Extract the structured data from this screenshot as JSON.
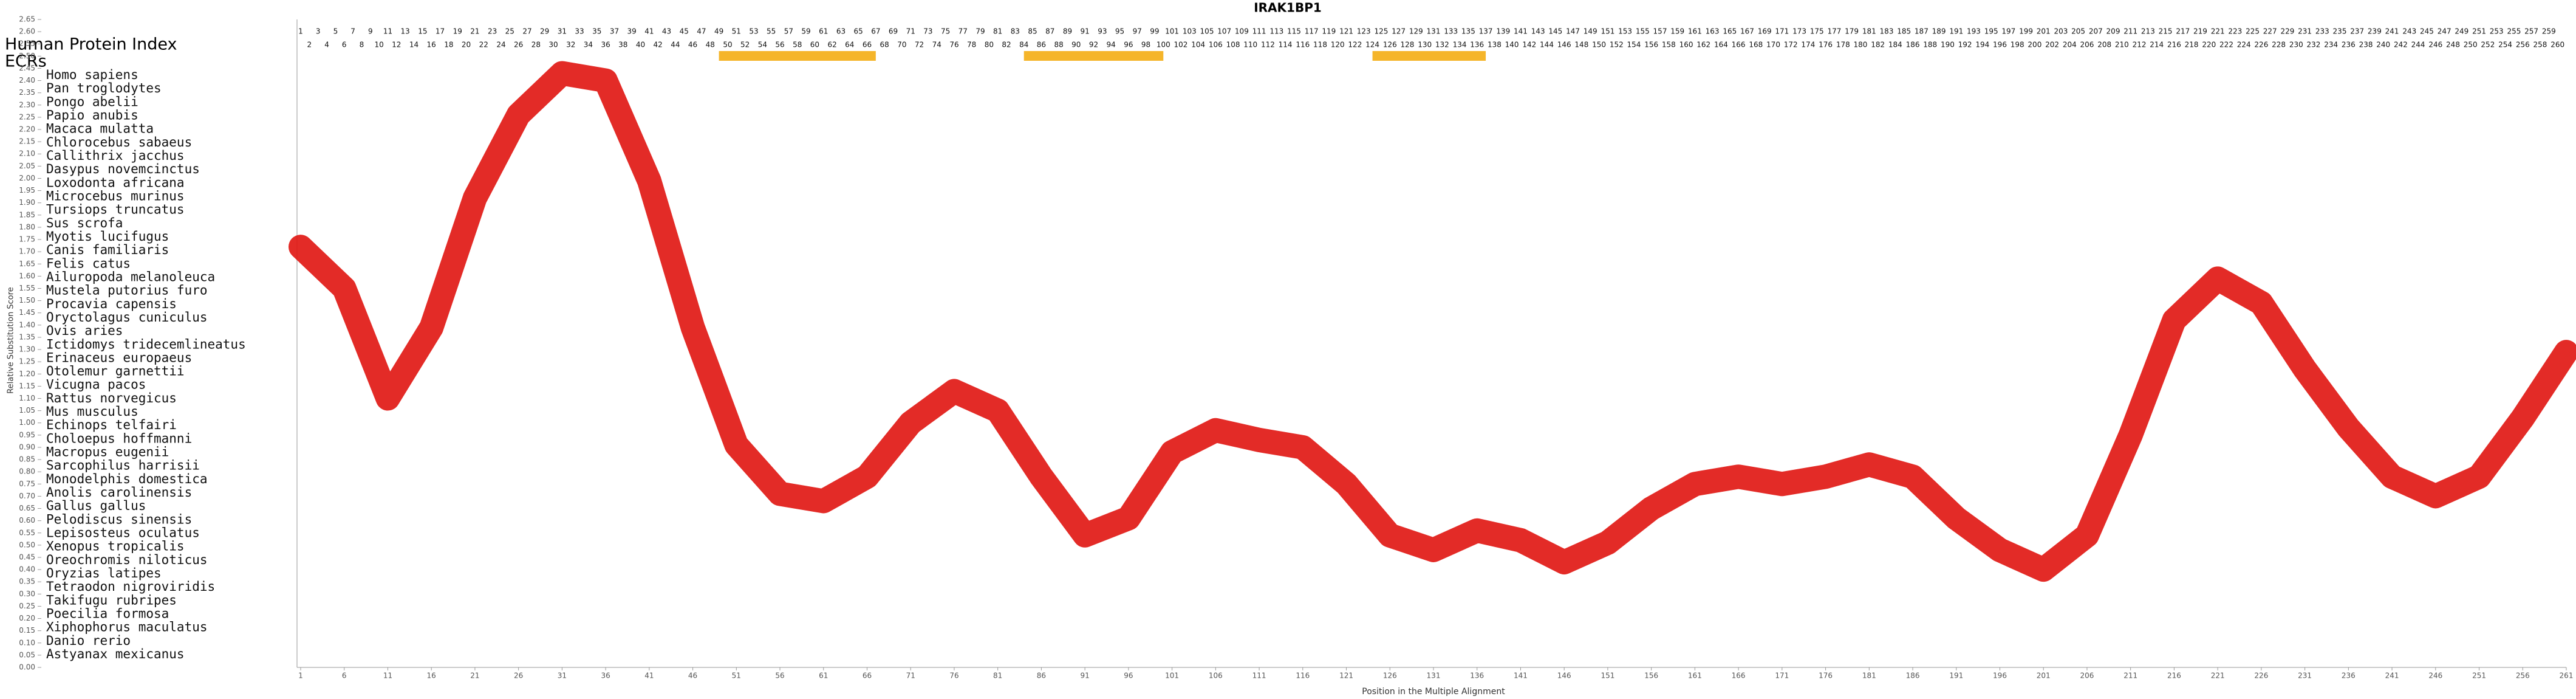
{
  "chart_data": {
    "type": "line",
    "title": "IRAK1BP1",
    "index_label": "Human Protein Index",
    "ecr_label": "ECRs",
    "xlabel": "Position in the Multiple Alignment",
    "ylabel": "Relative Substitution Score",
    "positions_odd": [
      1,
      3,
      5,
      7,
      9,
      11,
      13,
      15,
      17,
      19,
      21,
      23,
      25,
      27,
      29,
      31,
      33,
      35,
      37,
      39,
      41,
      43,
      45,
      47,
      49,
      51,
      53,
      55,
      57,
      59,
      61,
      63,
      65,
      67,
      69,
      71,
      73,
      75,
      77,
      79,
      81,
      83,
      85,
      87,
      89,
      91,
      93,
      95,
      97,
      99,
      101,
      103,
      105,
      107,
      109,
      111,
      113,
      115,
      117,
      119,
      121,
      123,
      125,
      127,
      129,
      131,
      133,
      135,
      137,
      139,
      141,
      143,
      145,
      147,
      149,
      151,
      153,
      155,
      157,
      159,
      161,
      163,
      165,
      167,
      169,
      171,
      173,
      175,
      177,
      179,
      181,
      183,
      185,
      187,
      189,
      191,
      193,
      195,
      197,
      199,
      201,
      203,
      205,
      207,
      209,
      211,
      213,
      215,
      217,
      219,
      221,
      223,
      225,
      227,
      229,
      231,
      233,
      235,
      237,
      239,
      241,
      243,
      245,
      247,
      249,
      251,
      253,
      255,
      257,
      259
    ],
    "positions_even": [
      2,
      4,
      6,
      8,
      10,
      12,
      14,
      16,
      18,
      20,
      22,
      24,
      26,
      28,
      30,
      32,
      34,
      36,
      38,
      40,
      42,
      44,
      46,
      48,
      50,
      52,
      54,
      56,
      58,
      60,
      62,
      64,
      66,
      68,
      70,
      72,
      74,
      76,
      78,
      80,
      82,
      84,
      86,
      88,
      90,
      92,
      94,
      96,
      98,
      100,
      102,
      104,
      106,
      108,
      110,
      112,
      114,
      116,
      118,
      120,
      122,
      124,
      126,
      128,
      130,
      132,
      134,
      136,
      138,
      140,
      142,
      144,
      146,
      148,
      150,
      152,
      154,
      156,
      158,
      160,
      162,
      164,
      166,
      168,
      170,
      172,
      174,
      176,
      178,
      180,
      182,
      184,
      186,
      188,
      190,
      192,
      194,
      196,
      198,
      200,
      202,
      204,
      206,
      208,
      210,
      212,
      214,
      216,
      218,
      220,
      222,
      224,
      226,
      228,
      230,
      232,
      234,
      236,
      238,
      240,
      242,
      244,
      246,
      248,
      250,
      252,
      254,
      256,
      258,
      260
    ],
    "ecrs": [
      [
        49,
        67
      ],
      [
        84,
        100
      ],
      [
        124,
        137
      ]
    ],
    "ecr_color": "#f5b52a",
    "species": [
      "Homo sapiens",
      "Pan troglodytes",
      "Pongo abelii",
      "Papio anubis",
      "Macaca mulatta",
      "Chlorocebus sabaeus",
      "Callithrix jacchus",
      "Dasypus novemcinctus",
      "Loxodonta africana",
      "Microcebus murinus",
      "Tursiops truncatus",
      "Sus scrofa",
      "Myotis lucifugus",
      "Canis familiaris",
      "Felis catus",
      "Ailuropoda melanoleuca",
      "Mustela putorius furo",
      "Procavia capensis",
      "Oryctolagus cuniculus",
      "Ovis aries",
      "Ictidomys tridecemlineatus",
      "Erinaceus europaeus",
      "Otolemur garnettii",
      "Vicugna pacos",
      "Rattus norvegicus",
      "Mus musculus",
      "Echinops telfairi",
      "Choloepus hoffmanni",
      "Macropus eugenii",
      "Sarcophilus harrisii",
      "Monodelphis domestica",
      "Anolis carolinensis",
      "Gallus gallus",
      "Pelodiscus sinensis",
      "Lepisosteus oculatus",
      "Xenopus tropicalis",
      "Oreochromis niloticus",
      "Oryzias latipes",
      "Tetraodon nigroviridis",
      "Takifugu rubripes",
      "Poecilia formosa",
      "Xiphophorus maculatus",
      "Danio rerio",
      "Astyanax mexicanus"
    ],
    "x": [
      1,
      6,
      11,
      16,
      21,
      26,
      31,
      36,
      41,
      46,
      51,
      56,
      61,
      66,
      71,
      76,
      81,
      86,
      91,
      96,
      101,
      106,
      111,
      116,
      121,
      126,
      131,
      136,
      141,
      146,
      151,
      156,
      161,
      166,
      171,
      176,
      181,
      186,
      191,
      196,
      201,
      206,
      211,
      216,
      221,
      226,
      231,
      236,
      241,
      246,
      251,
      256,
      261
    ],
    "series": [
      {
        "name": "Relative Substitution Score",
        "color": "#e0140f",
        "values": [
          1.72,
          1.55,
          1.1,
          1.39,
          1.92,
          2.26,
          2.43,
          2.4,
          1.99,
          1.39,
          0.91,
          0.71,
          0.68,
          0.78,
          1.0,
          1.13,
          1.05,
          0.78,
          0.54,
          0.61,
          0.88,
          0.97,
          0.93,
          0.9,
          0.75,
          0.54,
          0.48,
          0.56,
          0.52,
          0.43,
          0.51,
          0.65,
          0.75,
          0.78,
          0.75,
          0.78,
          0.83,
          0.78,
          0.61,
          0.48,
          0.4,
          0.54,
          0.95,
          1.42,
          1.59,
          1.49,
          1.22,
          0.98,
          0.78,
          0.7,
          0.78,
          1.02,
          1.29
        ]
      }
    ],
    "xlim": [
      1,
      261
    ],
    "xticks": [
      1,
      6,
      11,
      16,
      21,
      26,
      31,
      36,
      41,
      46,
      51,
      56,
      61,
      66,
      71,
      76,
      81,
      86,
      91,
      96,
      101,
      106,
      111,
      116,
      121,
      126,
      131,
      136,
      141,
      146,
      151,
      156,
      161,
      166,
      171,
      176,
      181,
      186,
      191,
      196,
      201,
      206,
      211,
      216,
      221,
      226,
      231,
      236,
      241,
      246,
      251,
      256,
      261
    ],
    "ylim": [
      0,
      2.65
    ],
    "yticks": [
      {
        "value": 0,
        "label": "0.00"
      },
      {
        "value": 0.05,
        "label": "0.05"
      },
      {
        "value": 0.1,
        "label": "0.10"
      },
      {
        "value": 0.15,
        "label": "0.15"
      },
      {
        "value": 0.2,
        "label": "0.20"
      },
      {
        "value": 0.25,
        "label": "0.25"
      },
      {
        "value": 0.3,
        "label": "0.30"
      },
      {
        "value": 0.35,
        "label": "0.35"
      },
      {
        "value": 0.4,
        "label": "0.40"
      },
      {
        "value": 0.45,
        "label": "0.45"
      },
      {
        "value": 0.5,
        "label": "0.50"
      },
      {
        "value": 0.55,
        "label": "0.55"
      },
      {
        "value": 0.6,
        "label": "0.60"
      },
      {
        "value": 0.65,
        "label": "0.65"
      },
      {
        "value": 0.7,
        "label": "0.70"
      },
      {
        "value": 0.75,
        "label": "0.75"
      },
      {
        "value": 0.8,
        "label": "0.80"
      },
      {
        "value": 0.85,
        "label": "0.85"
      },
      {
        "value": 0.9,
        "label": "0.90"
      },
      {
        "value": 0.95,
        "label": "0.95"
      },
      {
        "value": 1,
        "label": "1.00"
      },
      {
        "value": 1.05,
        "label": "1.05"
      },
      {
        "value": 1.1,
        "label": "1.10"
      },
      {
        "value": 1.15,
        "label": "1.15"
      },
      {
        "value": 1.2,
        "label": "1.20"
      },
      {
        "value": 1.25,
        "label": "1.25"
      },
      {
        "value": 1.3,
        "label": "1.30"
      },
      {
        "value": 1.35,
        "label": "1.35"
      },
      {
        "value": 1.4,
        "label": "1.40"
      },
      {
        "value": 1.45,
        "label": "1.45"
      },
      {
        "value": 1.5,
        "label": "1.50"
      },
      {
        "value": 1.55,
        "label": "1.55"
      },
      {
        "value": 1.6,
        "label": "1.60"
      },
      {
        "value": 1.65,
        "label": "1.65"
      },
      {
        "value": 1.7,
        "label": "1.70"
      },
      {
        "value": 1.75,
        "label": "1.75"
      },
      {
        "value": 1.8,
        "label": "1.80"
      },
      {
        "value": 1.85,
        "label": "1.85"
      },
      {
        "value": 1.9,
        "label": "1.90"
      },
      {
        "value": 1.95,
        "label": "1.95"
      },
      {
        "value": 2,
        "label": "2.00"
      },
      {
        "value": 2.05,
        "label": "2.05"
      },
      {
        "value": 2.1,
        "label": "2.10"
      },
      {
        "value": 2.15,
        "label": "2.15"
      },
      {
        "value": 2.2,
        "label": "2.20"
      },
      {
        "value": 2.25,
        "label": "2.25"
      },
      {
        "value": 2.3,
        "label": "2.30"
      },
      {
        "value": 2.35,
        "label": "2.35"
      },
      {
        "value": 2.4,
        "label": "2.40"
      },
      {
        "value": 2.45,
        "label": "2.45"
      },
      {
        "value": 2.5,
        "label": "2.50"
      },
      {
        "value": 2.55,
        "label": "2.55"
      },
      {
        "value": 2.6,
        "label": "2.60"
      },
      {
        "value": 2.65,
        "label": "2.65"
      }
    ]
  }
}
